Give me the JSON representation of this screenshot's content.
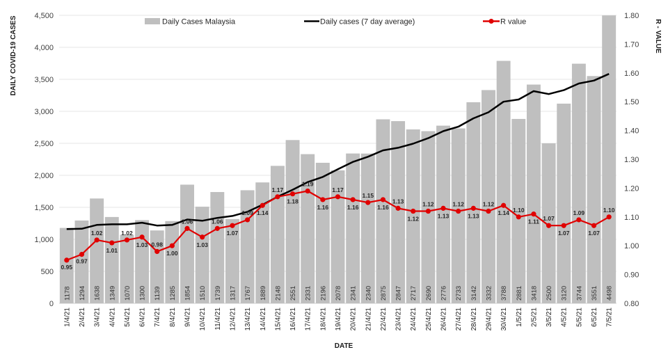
{
  "chart_data": {
    "type": "bar",
    "xlabel": "DATE",
    "ylabel": "DAILY COVID-19 CASES",
    "y2label": "R - VALUE",
    "ylim": [
      0,
      4500
    ],
    "y_ticks": [
      "0",
      "500",
      "1,000",
      "1,500",
      "2,000",
      "2,500",
      "3,000",
      "3,500",
      "4,000",
      "4,500"
    ],
    "y2lim": [
      0.8,
      1.8
    ],
    "y2_ticks": [
      "0.80",
      "0.90",
      "1.00",
      "1.10",
      "1.20",
      "1.30",
      "1.40",
      "1.50",
      "1.60",
      "1.70",
      "1.80"
    ],
    "grid": true,
    "legend_position": "top",
    "categories": [
      "1/4/21",
      "2/4/21",
      "3/4/21",
      "4/4/21",
      "5/4/21",
      "6/4/21",
      "7/4/21",
      "8/4/21",
      "9/4/21",
      "10/4/21",
      "11/4/21",
      "12/4/21",
      "13/4/21",
      "14/4/21",
      "15/4/21",
      "16/4/21",
      "17/4/21",
      "18/4/21",
      "19/4/21",
      "20/4/21",
      "21/4/21",
      "22/4/21",
      "23/4/21",
      "24/4/21",
      "25/4/21",
      "26/4/21",
      "27/4/21",
      "28/4/21",
      "29/4/21",
      "30/4/21",
      "1/5/21",
      "2/5/21",
      "3/5/21",
      "4/5/21",
      "5/5/21",
      "6/5/21",
      "7/5/21"
    ],
    "series": [
      {
        "name": "Daily Cases Malaysia",
        "type": "bar",
        "axis": "left",
        "color": "#bfbfbf",
        "values": [
          1178,
          1294,
          1638,
          1349,
          1070,
          1300,
          1139,
          1285,
          1854,
          1510,
          1739,
          1317,
          1767,
          1889,
          2148,
          2551,
          2331,
          2196,
          2078,
          2341,
          2340,
          2875,
          2847,
          2717,
          2690,
          2776,
          2733,
          3142,
          3332,
          3788,
          2881,
          3418,
          2500,
          3120,
          3744,
          3551,
          4498
        ]
      },
      {
        "name": "Daily cases (7 day average)",
        "type": "line",
        "axis": "left",
        "color": "#000000",
        "values": [
          1160,
          1165,
          1225,
          1235,
          1235,
          1260,
          1215,
          1225,
          1310,
          1290,
          1335,
          1365,
          1430,
          1540,
          1665,
          1775,
          1895,
          1975,
          2095,
          2210,
          2290,
          2390,
          2430,
          2495,
          2580,
          2690,
          2760,
          2890,
          2985,
          3150,
          3185,
          3315,
          3270,
          3330,
          3435,
          3480,
          3585
        ]
      },
      {
        "name": "R value",
        "type": "line",
        "axis": "right",
        "color": "#e00000",
        "values": [
          0.95,
          0.97,
          1.02,
          1.01,
          1.02,
          1.03,
          0.98,
          1.0,
          1.06,
          1.03,
          1.06,
          1.07,
          1.09,
          1.14,
          1.17,
          1.18,
          1.19,
          1.16,
          1.17,
          1.16,
          1.15,
          1.16,
          1.13,
          1.12,
          1.12,
          1.13,
          1.12,
          1.13,
          1.12,
          1.14,
          1.1,
          1.11,
          1.07,
          1.07,
          1.09,
          1.07,
          1.1
        ]
      }
    ]
  }
}
